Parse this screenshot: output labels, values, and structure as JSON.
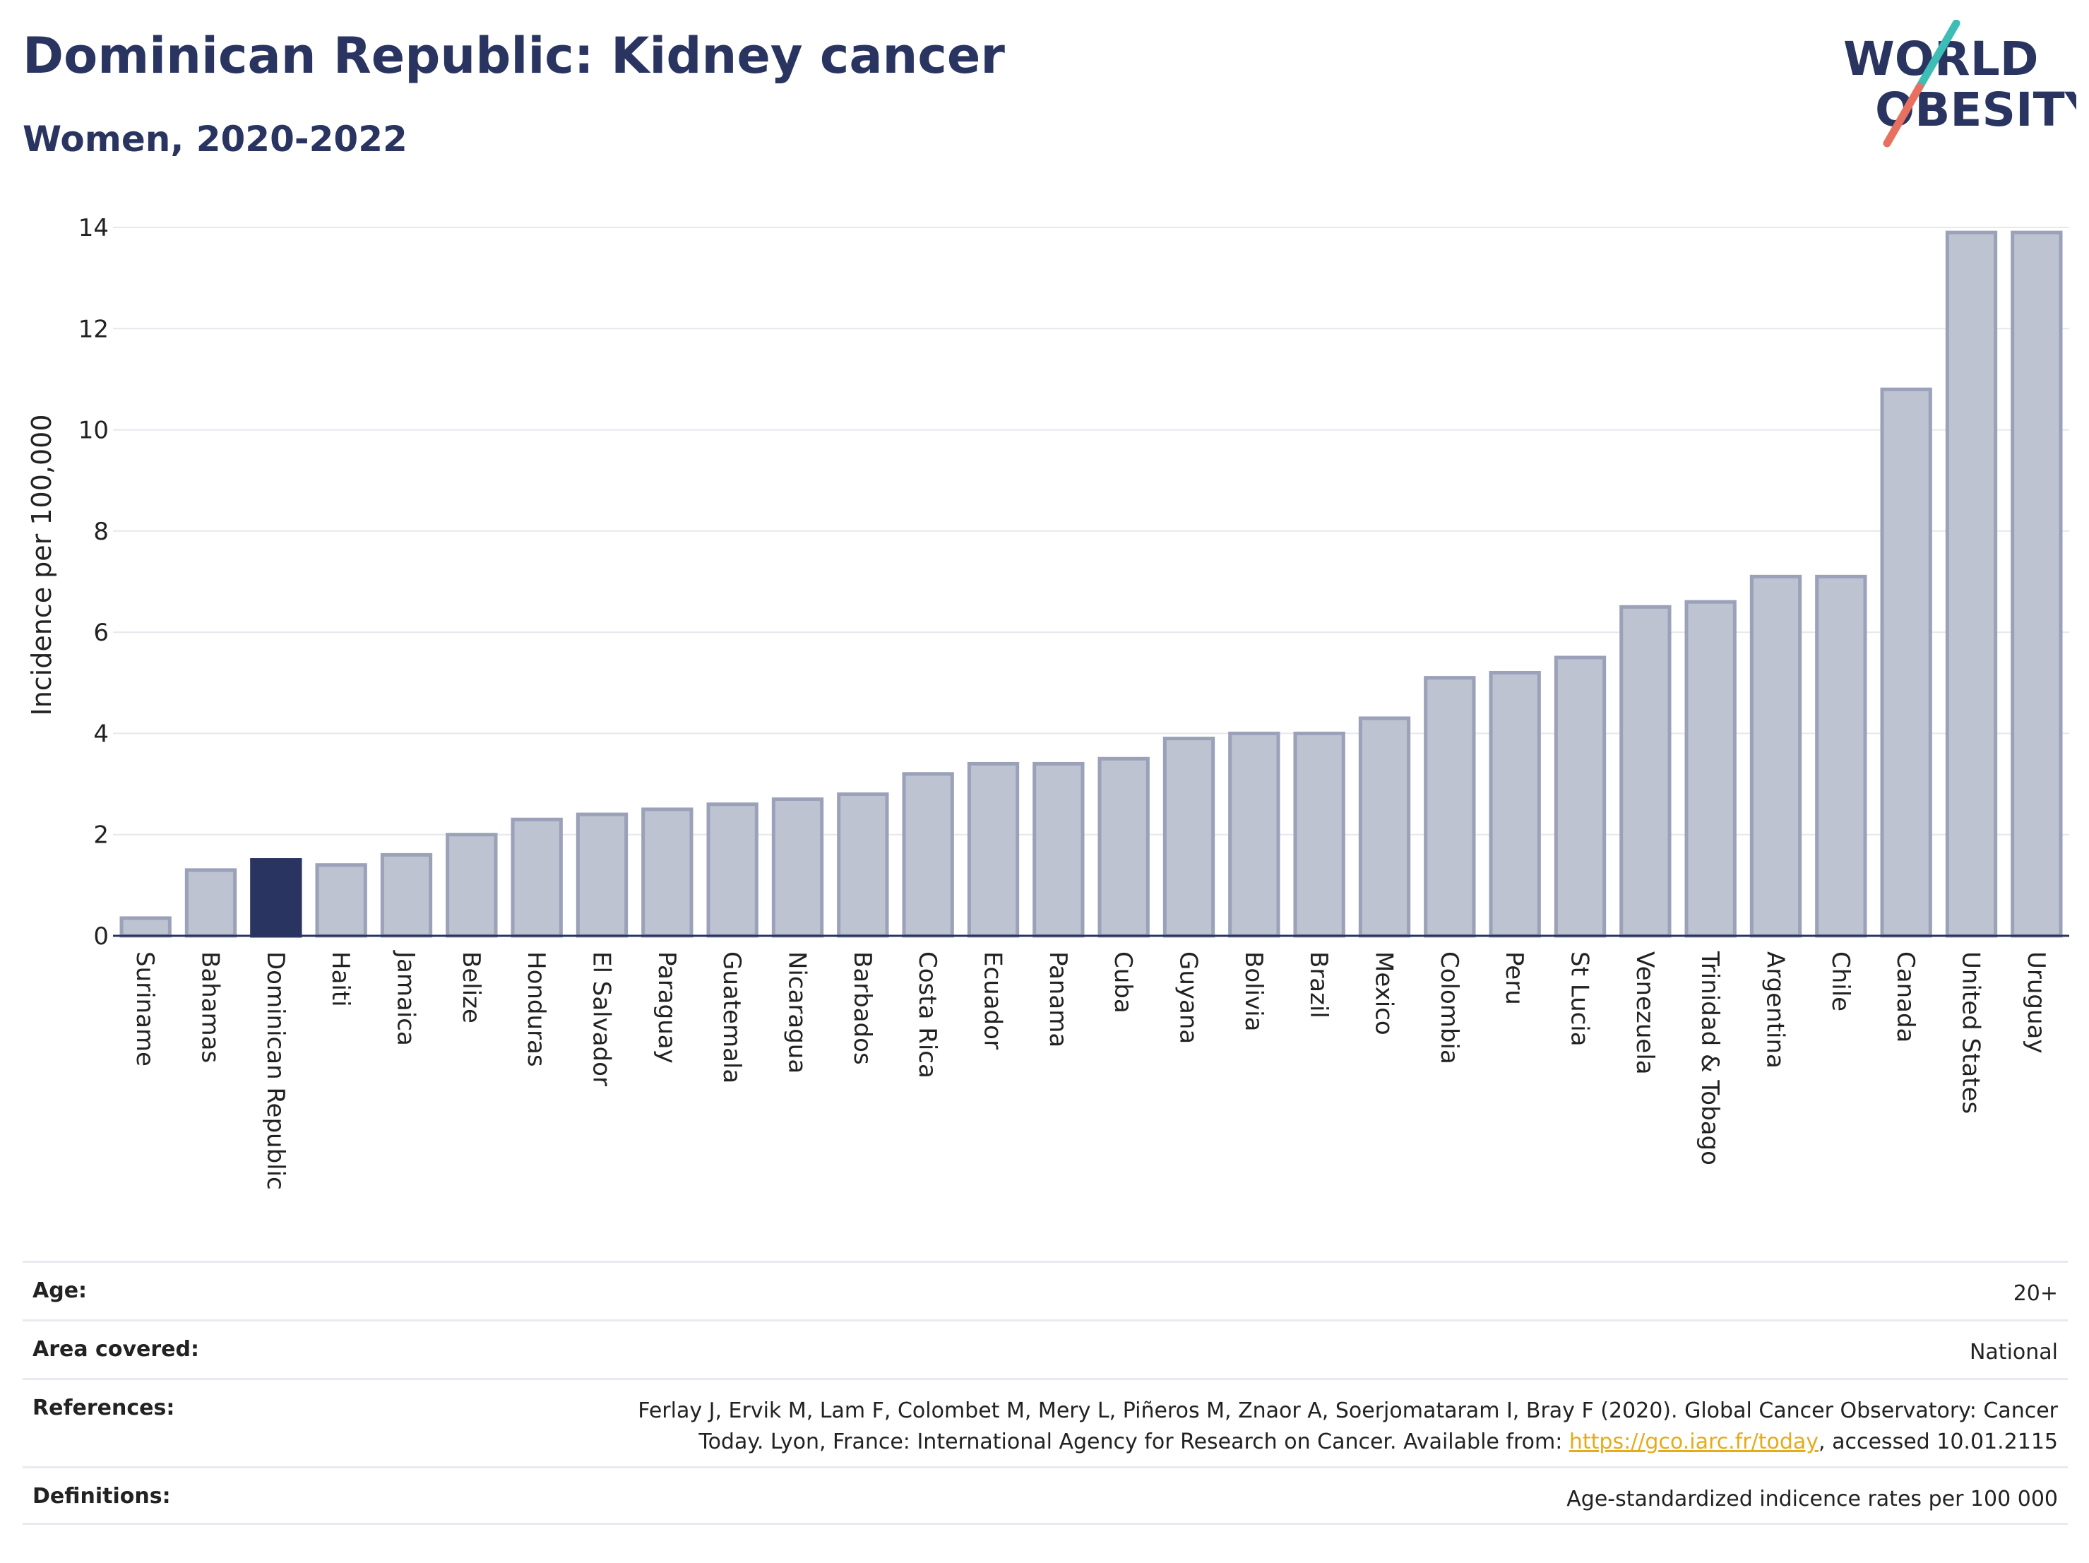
{
  "header": {
    "title": "Dominican Republic: Kidney cancer",
    "subtitle": "Women, 2020-2022"
  },
  "logo": {
    "line1": "WORLD",
    "line2": "OBESITY",
    "colors": {
      "text": "#293560",
      "slash_top": "#3dbdb5",
      "slash_bottom": "#e8705e"
    }
  },
  "chart_data": {
    "type": "bar",
    "ylabel": "Incidence per 100,000",
    "xlabel": "",
    "ylim": [
      0,
      14
    ],
    "yticks": [
      0,
      2,
      4,
      6,
      8,
      10,
      12,
      14
    ],
    "grid": true,
    "highlight": "Dominican Republic",
    "colors": {
      "bar": "#bec3d1",
      "bar_edge": "#9aa1b8",
      "highlight": "#293560"
    },
    "categories": [
      "Suriname",
      "Bahamas",
      "Dominican Republic",
      "Haiti",
      "Jamaica",
      "Belize",
      "Honduras",
      "El Salvador",
      "Paraguay",
      "Guatemala",
      "Nicaragua",
      "Barbados",
      "Costa Rica",
      "Ecuador",
      "Panama",
      "Cuba",
      "Guyana",
      "Bolivia",
      "Brazil",
      "Mexico",
      "Colombia",
      "Peru",
      "St Lucia",
      "Venezuela",
      "Trinidad & Tobago",
      "Argentina",
      "Chile",
      "Canada",
      "United States",
      "Uruguay"
    ],
    "values": [
      0.35,
      1.3,
      1.5,
      1.4,
      1.6,
      2.0,
      2.3,
      2.4,
      2.5,
      2.6,
      2.7,
      2.8,
      3.2,
      3.4,
      3.4,
      3.5,
      3.9,
      4.0,
      4.0,
      4.3,
      5.1,
      5.2,
      5.5,
      6.5,
      6.6,
      7.1,
      7.1,
      10.8,
      13.9,
      13.9
    ]
  },
  "info": {
    "age_label": "Age:",
    "age_value": "20+",
    "area_label": "Area covered:",
    "area_value": "National",
    "references_label": "References:",
    "references_text_1": "Ferlay J, Ervik M, Lam F, Colombet M, Mery L, Piñeros M, Znaor A, Soerjomataram I, Bray F (2020). Global Cancer Observatory: Cancer",
    "references_text_2": "Today. Lyon, France: International Agency for Research on Cancer. Available from: ",
    "references_link": "https://gco.iarc.fr/today",
    "references_text_3": ", accessed 10.01.2115",
    "definitions_label": "Definitions:",
    "definitions_value": "Age-standardized indicence rates per 100 000"
  }
}
